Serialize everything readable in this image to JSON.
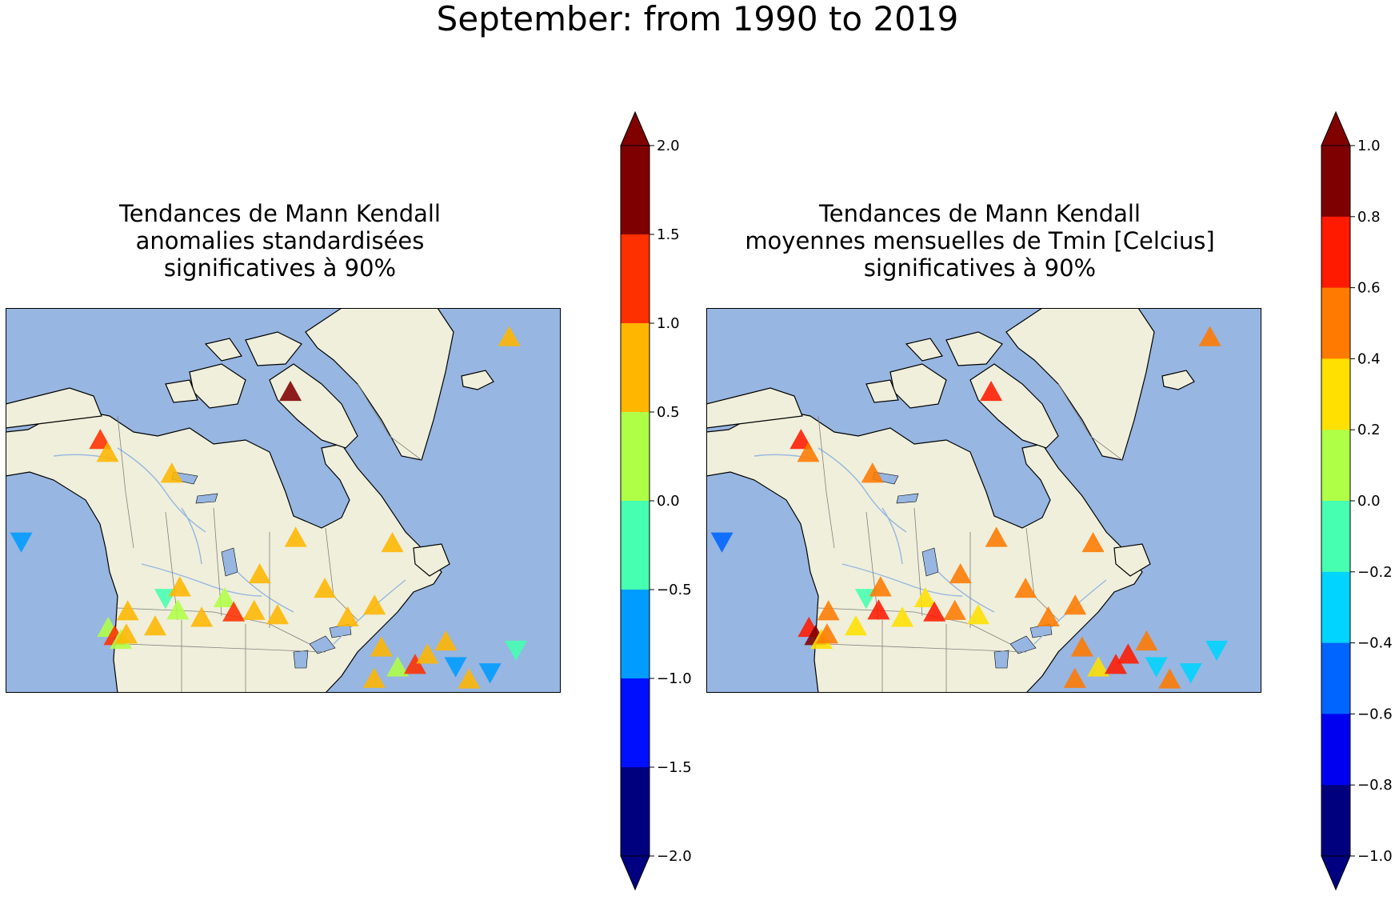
{
  "suptitle": "September: from 1990 to 2019",
  "panels": [
    {
      "title_lines": [
        "Tendances de Mann Kendall",
        "anomalies standardisées",
        "significatives à 90%"
      ],
      "colorbar": {
        "ticks": [
          "2.0",
          "1.5",
          "1.0",
          "0.5",
          "0.0",
          "−0.5",
          "−1.0",
          "−1.5",
          "−2.0"
        ],
        "colors_top_to_bottom": [
          "#7f0000",
          "#ff3000",
          "#ffb600",
          "#b0ff47",
          "#47ffb0",
          "#009cff",
          "#0010ff",
          "#00007f"
        ],
        "extend_max_color": "#800000",
        "extend_min_color": "#000080"
      },
      "stations": [
        {
          "lon": -139,
          "lat": 61,
          "dir": "down",
          "color": "#009cff"
        },
        {
          "lon": -126,
          "lat": 50,
          "dir": "up",
          "color": "#b0ff47"
        },
        {
          "lon": -125,
          "lat": 49,
          "dir": "up",
          "color": "#ff3000"
        },
        {
          "lon": -124,
          "lat": 48.5,
          "dir": "up",
          "color": "#b0ff47"
        },
        {
          "lon": -123,
          "lat": 49,
          "dir": "up",
          "color": "#ffb600"
        },
        {
          "lon": -122.5,
          "lat": 51.5,
          "dir": "up",
          "color": "#ffb600"
        },
        {
          "lon": -116,
          "lat": 52.5,
          "dir": "down",
          "color": "#47ffb0"
        },
        {
          "lon": -118,
          "lat": 49.5,
          "dir": "up",
          "color": "#ffb600"
        },
        {
          "lon": -114,
          "lat": 51,
          "dir": "up",
          "color": "#b0ff47"
        },
        {
          "lon": -113.5,
          "lat": 53.5,
          "dir": "up",
          "color": "#ffb600"
        },
        {
          "lon": -110,
          "lat": 50,
          "dir": "up",
          "color": "#ffb600"
        },
        {
          "lon": -106,
          "lat": 52,
          "dir": "up",
          "color": "#b0ff47"
        },
        {
          "lon": -104.5,
          "lat": 50.4,
          "dir": "up",
          "color": "#ff3000"
        },
        {
          "lon": -101,
          "lat": 50.5,
          "dir": "up",
          "color": "#ffb600"
        },
        {
          "lon": -97,
          "lat": 50,
          "dir": "up",
          "color": "#ffb600"
        },
        {
          "lon": -100,
          "lat": 54.5,
          "dir": "up",
          "color": "#ffb600"
        },
        {
          "lon": -94,
          "lat": 58.5,
          "dir": "up",
          "color": "#ffb600"
        },
        {
          "lon": -89,
          "lat": 53,
          "dir": "up",
          "color": "#ffb600"
        },
        {
          "lon": -85,
          "lat": 50,
          "dir": "up",
          "color": "#ffb600"
        },
        {
          "lon": -80.5,
          "lat": 51.5,
          "dir": "up",
          "color": "#ffb600"
        },
        {
          "lon": -79,
          "lat": 47,
          "dir": "up",
          "color": "#ffb600"
        },
        {
          "lon": -80,
          "lat": 43.5,
          "dir": "up",
          "color": "#ffb600"
        },
        {
          "lon": -76,
          "lat": 45,
          "dir": "up",
          "color": "#b0ff47"
        },
        {
          "lon": -73,
          "lat": 45.5,
          "dir": "up",
          "color": "#ff3000"
        },
        {
          "lon": -71,
          "lat": 46.8,
          "dir": "up",
          "color": "#ffb600"
        },
        {
          "lon": -68,
          "lat": 48.5,
          "dir": "up",
          "color": "#ffb600"
        },
        {
          "lon": -66,
          "lat": 46,
          "dir": "down",
          "color": "#009cff"
        },
        {
          "lon": -63.5,
          "lat": 44.8,
          "dir": "up",
          "color": "#ffb600"
        },
        {
          "lon": -60,
          "lat": 46,
          "dir": "down",
          "color": "#009cff"
        },
        {
          "lon": -56,
          "lat": 49,
          "dir": "down",
          "color": "#47ffb0"
        },
        {
          "lon": -78,
          "lat": 58.5,
          "dir": "up",
          "color": "#ffb600"
        },
        {
          "lon": -125,
          "lat": 70.5,
          "dir": "up",
          "color": "#ff3000"
        },
        {
          "lon": -124,
          "lat": 69,
          "dir": "up",
          "color": "#ffb600"
        },
        {
          "lon": -114,
          "lat": 66,
          "dir": "up",
          "color": "#ffb600"
        },
        {
          "lon": -95,
          "lat": 74.5,
          "dir": "up",
          "color": "#7f0000"
        },
        {
          "lon": -62,
          "lat": 82.5,
          "dir": "up",
          "color": "#ffb600"
        }
      ]
    },
    {
      "title_lines": [
        "Tendances de Mann Kendall",
        "moyennes mensuelles de Tmin [Celcius]",
        "significatives à 90%"
      ],
      "colorbar": {
        "ticks": [
          "1.0",
          "0.8",
          "0.6",
          "0.4",
          "0.2",
          "0.0",
          "−0.2",
          "−0.4",
          "−0.6",
          "−0.8",
          "−1.0"
        ],
        "colors_top_to_bottom": [
          "#7f0000",
          "#ff1a00",
          "#ff7a00",
          "#ffe000",
          "#b0ff47",
          "#47ffb0",
          "#00d4ff",
          "#0064ff",
          "#0000f1",
          "#00007f"
        ],
        "extend_max_color": "#800000",
        "extend_min_color": "#000080"
      },
      "stations": [
        {
          "lon": -139,
          "lat": 61,
          "dir": "down",
          "color": "#0064ff"
        },
        {
          "lon": -126,
          "lat": 50,
          "dir": "up",
          "color": "#ff1a00"
        },
        {
          "lon": -125,
          "lat": 49,
          "dir": "up",
          "color": "#7f0000"
        },
        {
          "lon": -124,
          "lat": 48.5,
          "dir": "up",
          "color": "#ffe000"
        },
        {
          "lon": -123,
          "lat": 49,
          "dir": "up",
          "color": "#ff7a00"
        },
        {
          "lon": -122.5,
          "lat": 51.5,
          "dir": "up",
          "color": "#ff7a00"
        },
        {
          "lon": -116,
          "lat": 52.5,
          "dir": "down",
          "color": "#47ffb0"
        },
        {
          "lon": -118,
          "lat": 49.5,
          "dir": "up",
          "color": "#ffe000"
        },
        {
          "lon": -114,
          "lat": 51,
          "dir": "up",
          "color": "#ff1a00"
        },
        {
          "lon": -113.5,
          "lat": 53.5,
          "dir": "up",
          "color": "#ff7a00"
        },
        {
          "lon": -110,
          "lat": 50,
          "dir": "up",
          "color": "#ffe000"
        },
        {
          "lon": -106,
          "lat": 52,
          "dir": "up",
          "color": "#ffe000"
        },
        {
          "lon": -104.5,
          "lat": 50.4,
          "dir": "up",
          "color": "#ff1a00"
        },
        {
          "lon": -101,
          "lat": 50.5,
          "dir": "up",
          "color": "#ff7a00"
        },
        {
          "lon": -97,
          "lat": 50,
          "dir": "up",
          "color": "#ffe000"
        },
        {
          "lon": -100,
          "lat": 54.5,
          "dir": "up",
          "color": "#ff7a00"
        },
        {
          "lon": -94,
          "lat": 58.5,
          "dir": "up",
          "color": "#ff7a00"
        },
        {
          "lon": -89,
          "lat": 53,
          "dir": "up",
          "color": "#ff7a00"
        },
        {
          "lon": -85,
          "lat": 50,
          "dir": "up",
          "color": "#ff7a00"
        },
        {
          "lon": -80.5,
          "lat": 51.5,
          "dir": "up",
          "color": "#ff7a00"
        },
        {
          "lon": -79,
          "lat": 47,
          "dir": "up",
          "color": "#ff7a00"
        },
        {
          "lon": -80,
          "lat": 43.5,
          "dir": "up",
          "color": "#ff7a00"
        },
        {
          "lon": -76,
          "lat": 45,
          "dir": "up",
          "color": "#ffe000"
        },
        {
          "lon": -73,
          "lat": 45.5,
          "dir": "up",
          "color": "#ff1a00"
        },
        {
          "lon": -71,
          "lat": 46.8,
          "dir": "up",
          "color": "#ff1a00"
        },
        {
          "lon": -68,
          "lat": 48.5,
          "dir": "up",
          "color": "#ff7a00"
        },
        {
          "lon": -66,
          "lat": 46,
          "dir": "down",
          "color": "#00d4ff"
        },
        {
          "lon": -63.5,
          "lat": 44.8,
          "dir": "up",
          "color": "#ff7a00"
        },
        {
          "lon": -60,
          "lat": 46,
          "dir": "down",
          "color": "#00d4ff"
        },
        {
          "lon": -56,
          "lat": 49,
          "dir": "down",
          "color": "#00d4ff"
        },
        {
          "lon": -78,
          "lat": 58.5,
          "dir": "up",
          "color": "#ff7a00"
        },
        {
          "lon": -125,
          "lat": 70.5,
          "dir": "up",
          "color": "#ff1a00"
        },
        {
          "lon": -124,
          "lat": 69,
          "dir": "up",
          "color": "#ff7a00"
        },
        {
          "lon": -114,
          "lat": 66,
          "dir": "up",
          "color": "#ff7a00"
        },
        {
          "lon": -95,
          "lat": 74.5,
          "dir": "up",
          "color": "#ff1a00"
        },
        {
          "lon": -62,
          "lat": 82.5,
          "dir": "up",
          "color": "#ff7a00"
        }
      ]
    }
  ],
  "map_colors": {
    "ocean": "#97b6e1",
    "land": "#efefdb",
    "rivers": "#97b6e1",
    "borders": "#808080",
    "coast": "#000000"
  }
}
